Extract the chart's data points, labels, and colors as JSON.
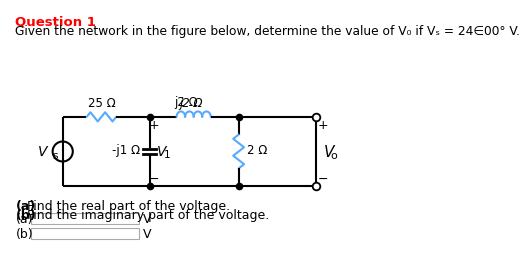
{
  "title_bold": "Question 1",
  "title_color": "#FF0000",
  "subtitle": "Given the network in the figure below, determine the value of V₀ if Vₛ =  24∈00° V.",
  "part_a_bold": "(a)",
  "part_a_rest": " Find the real part of the voltage.",
  "part_b_bold": "(b)",
  "part_b_rest": " Find the imaginary part of the voltage.",
  "input_a_label": "(a)",
  "input_b_label": "(b)",
  "unit_v": "V",
  "resistor_25_label": "25 Ω",
  "resistor_j2_label": "j2 Ω",
  "resistor_neg_j1_label": "-j1 Ω",
  "resistor_2_label": "2 Ω",
  "v1_label": "V",
  "v1_sub": "1",
  "vs_label": "V",
  "vs_sub": "s",
  "vo_label": "V",
  "vo_sub": "o",
  "plus_sign": "+",
  "minus_sign": "−",
  "wire_color": "#000000",
  "resistor_25_color": "#55AAFF",
  "resistor_j2_color": "#55AAFF",
  "resistor_2_color": "#55AAFF",
  "bg_color": "#FFFFFF"
}
